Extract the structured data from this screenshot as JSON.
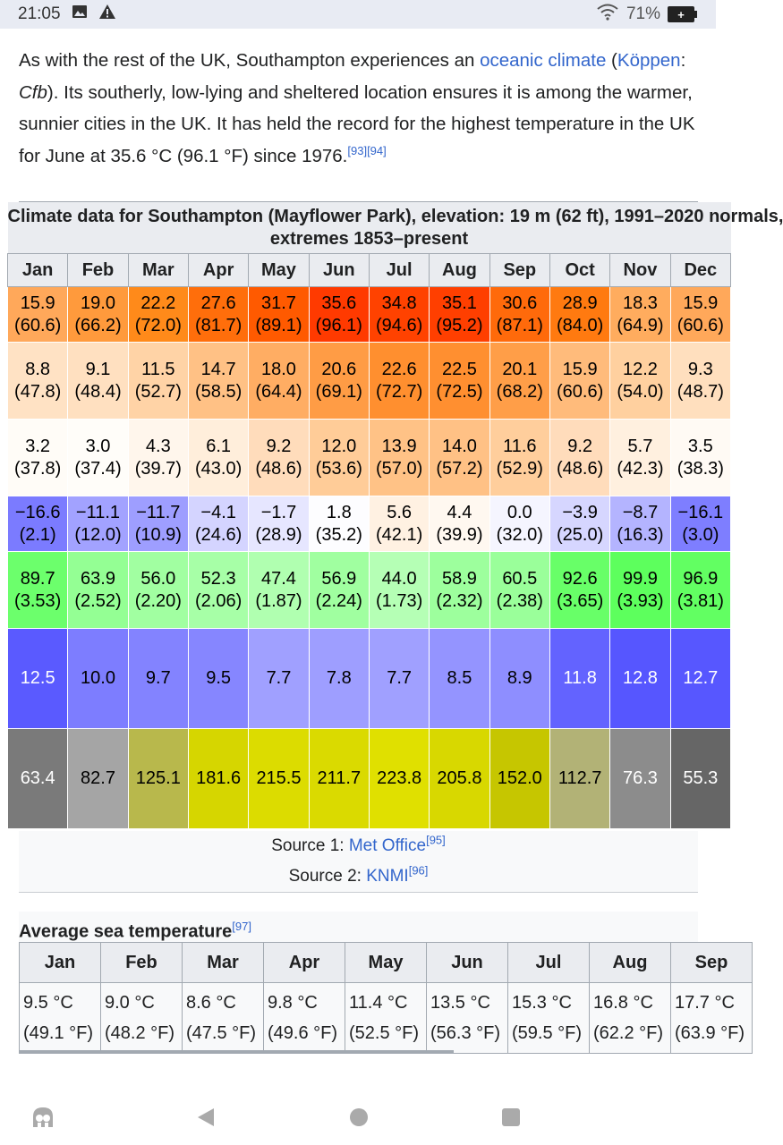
{
  "status": {
    "time": "21:05",
    "battery": "71%"
  },
  "paragraph": {
    "part1": "As with the rest of the UK, Southampton experiences an ",
    "link1": "oceanic climate",
    "part2": " (",
    "link2": "Köppen",
    "part3": ": ",
    "italic": "Cfb",
    "part4": "). Its southerly, low-lying and sheltered location ensures it is among the warmer, sunnier cities in the UK. It has held the record for the highest temperature in the UK for June at 35.6 °C (96.1 °F) since 1976.",
    "ref1": "[93]",
    "ref2": "[94]"
  },
  "climate": {
    "caption_line1": "Climate data for Southampton (Mayflower Park), elevation: 19 m (62 ft), 1991–2020 normals,",
    "caption_line2": "extremes 1853–present",
    "months": [
      "Jan",
      "Feb",
      "Mar",
      "Apr",
      "May",
      "Jun",
      "Jul",
      "Aug",
      "Sep",
      "Oct",
      "Nov",
      "Dec"
    ],
    "record_high": {
      "c": [
        "15.9",
        "19.0",
        "22.2",
        "27.6",
        "31.7",
        "35.6",
        "34.8",
        "35.1",
        "30.6",
        "28.9",
        "18.3",
        "15.9"
      ],
      "f": [
        "(60.6)",
        "(66.2)",
        "(72.0)",
        "(81.7)",
        "(89.1)",
        "(96.1)",
        "(94.6)",
        "(95.2)",
        "(87.1)",
        "(84.0)",
        "(64.9)",
        "(60.6)"
      ],
      "colors": [
        "#ffa85a",
        "#ff9a3c",
        "#ff8a1a",
        "#ff6e0b",
        "#ff5a00",
        "#ff3a00",
        "#ff4200",
        "#ff3f00",
        "#ff6a0b",
        "#ff7a10",
        "#ffac5e",
        "#ffa85a"
      ]
    },
    "mean_high": {
      "c": [
        "8.8",
        "9.1",
        "11.5",
        "14.7",
        "18.0",
        "20.6",
        "22.6",
        "22.5",
        "20.1",
        "15.9",
        "12.2",
        "9.3"
      ],
      "f": [
        "(47.8)",
        "(48.4)",
        "(52.7)",
        "(58.5)",
        "(64.4)",
        "(69.1)",
        "(72.7)",
        "(72.5)",
        "(68.2)",
        "(60.6)",
        "(54.0)",
        "(48.7)"
      ],
      "colors": [
        "#ffe2c4",
        "#ffe0c0",
        "#ffd3a6",
        "#ffc185",
        "#ffad63",
        "#ff9c45",
        "#ff8f2f",
        "#ff8f30",
        "#ff9e48",
        "#ffbb7b",
        "#ffd09f",
        "#ffdfbe"
      ]
    },
    "mean_low": {
      "c": [
        "3.2",
        "3.0",
        "4.3",
        "6.1",
        "9.2",
        "12.0",
        "13.9",
        "14.0",
        "11.6",
        "9.2",
        "5.7",
        "3.5"
      ],
      "f": [
        "(37.8)",
        "(37.4)",
        "(39.7)",
        "(43.0)",
        "(48.6)",
        "(53.6)",
        "(57.0)",
        "(57.2)",
        "(52.9)",
        "(48.6)",
        "(42.3)",
        "(38.3)"
      ],
      "colors": [
        "#fffcf7",
        "#fffdf9",
        "#fff6ec",
        "#ffeedb",
        "#ffdcbb",
        "#ffcc98",
        "#ffc286",
        "#ffc185",
        "#ffce9c",
        "#ffdcbb",
        "#fff0df",
        "#fffaf4"
      ]
    },
    "record_low": {
      "c": [
        "−16.6",
        "−11.1",
        "−11.7",
        "−4.1",
        "−1.7",
        "1.8",
        "5.6",
        "4.4",
        "0.0",
        "−3.9",
        "−8.7",
        "−16.1"
      ],
      "f": [
        "(2.1)",
        "(12.0)",
        "(10.9)",
        "(24.6)",
        "(28.9)",
        "(35.2)",
        "(42.1)",
        "(39.9)",
        "(32.0)",
        "(25.0)",
        "(16.3)",
        "(3.0)"
      ],
      "colors": [
        "#7b7bff",
        "#a2a2ff",
        "#9e9eff",
        "#d4d4ff",
        "#e6e6ff",
        "#fdfdff",
        "#fff1e2",
        "#fff8f0",
        "#f5f5ff",
        "#d6d6ff",
        "#b4b4ff",
        "#7e7eff"
      ]
    },
    "precip": {
      "mm": [
        "89.7",
        "63.9",
        "56.0",
        "52.3",
        "47.4",
        "56.9",
        "44.0",
        "58.9",
        "60.5",
        "92.6",
        "99.9",
        "96.9"
      ],
      "in": [
        "(3.53)",
        "(2.52)",
        "(2.20)",
        "(2.06)",
        "(1.87)",
        "(2.24)",
        "(1.73)",
        "(2.32)",
        "(2.38)",
        "(3.65)",
        "(3.93)",
        "(3.81)"
      ],
      "colors": [
        "#6cff6c",
        "#94ff94",
        "#a1ffa1",
        "#a7ffa7",
        "#b0ffb0",
        "#a0ffa0",
        "#b5ffb5",
        "#9dff9d",
        "#9aff9a",
        "#68ff68",
        "#5dff5d",
        "#62ff62"
      ]
    },
    "precip_days": {
      "v": [
        "12.5",
        "10.0",
        "9.7",
        "9.5",
        "7.7",
        "7.8",
        "7.7",
        "8.5",
        "8.9",
        "11.8",
        "12.8",
        "12.7"
      ],
      "colors": [
        "#5a5aff",
        "#7d7dff",
        "#8383ff",
        "#8686ff",
        "#a0a0ff",
        "#9e9eff",
        "#a0a0ff",
        "#9494ff",
        "#8e8eff",
        "#6363ff",
        "#5656ff",
        "#5757ff"
      ]
    },
    "sunshine": {
      "v": [
        "63.4",
        "82.7",
        "125.1",
        "181.6",
        "215.5",
        "211.7",
        "223.8",
        "205.8",
        "152.0",
        "112.7",
        "76.3",
        "55.3"
      ],
      "colors": [
        "#7a7a7a",
        "#a5a5a5",
        "#b8b84c",
        "#d6d600",
        "#dcdc00",
        "#dada00",
        "#e0e000",
        "#d8d800",
        "#c6c600",
        "#b2b276",
        "#8c8c8c",
        "#666666"
      ]
    },
    "source1_label": "Source 1: ",
    "source1_link": "Met Office",
    "source1_ref": "[95]",
    "source2_label": "Source 2: ",
    "source2_link": "KNMI",
    "source2_ref": "[96]"
  },
  "sea": {
    "title": "Average sea temperature",
    "ref": "[97]",
    "months": [
      "Jan",
      "Feb",
      "Mar",
      "Apr",
      "May",
      "Jun",
      "Jul",
      "Aug",
      "Sep"
    ],
    "c": [
      "9.5 °C",
      "9.0 °C",
      "8.6 °C",
      "9.8 °C",
      "11.4 °C",
      "13.5 °C",
      "15.3 °C",
      "16.8 °C",
      "17.7 °C"
    ],
    "f": [
      "(49.1 °F)",
      "(48.2 °F)",
      "(47.5 °F)",
      "(49.6 °F)",
      "(52.5 °F)",
      "(56.3 °F)",
      "(59.5 °F)",
      "(62.2 °F)",
      "(63.9 °F)"
    ]
  }
}
